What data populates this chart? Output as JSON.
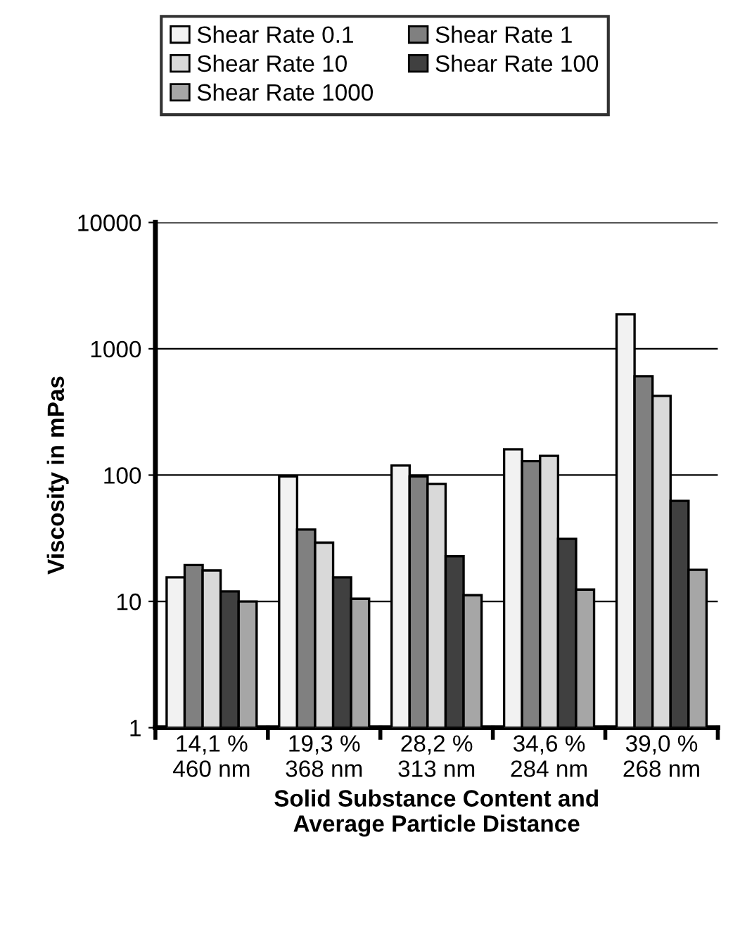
{
  "chart_data": {
    "type": "bar",
    "xlabel": "Solid Substance Content and\nAverage Particle Distance",
    "ylabel": "Viscosity in mPas",
    "categories": [
      "14,1 %\n460 nm",
      "19,3 %\n368 nm",
      "28,2 %\n313 nm",
      "34,6 %\n284 nm",
      "39,0 %\n268 nm"
    ],
    "series": [
      {
        "name": "Shear Rate 0.1",
        "color": "#f2f2f2",
        "values": [
          15.5,
          97.5,
          119,
          160,
          1874
        ]
      },
      {
        "name": "Shear Rate 1",
        "color": "#808080",
        "values": [
          19.4,
          37.1,
          97.5,
          129,
          607
        ]
      },
      {
        "name": "Shear Rate 10",
        "color": "#d9d9d9",
        "values": [
          17.6,
          29.2,
          85,
          142,
          424
        ]
      },
      {
        "name": "Shear Rate 100",
        "color": "#404040",
        "values": [
          12.0,
          15.5,
          22.8,
          31.3,
          62.5
        ]
      },
      {
        "name": "Shear Rate 1000",
        "color": "#a6a6a6",
        "values": [
          10.0,
          10.5,
          11.2,
          12.4,
          17.8
        ]
      }
    ],
    "log": "y",
    "ylim": [
      1,
      10000
    ],
    "yticks": [
      1,
      10,
      100,
      1000,
      10000
    ],
    "grid": "y",
    "legend": "top"
  }
}
